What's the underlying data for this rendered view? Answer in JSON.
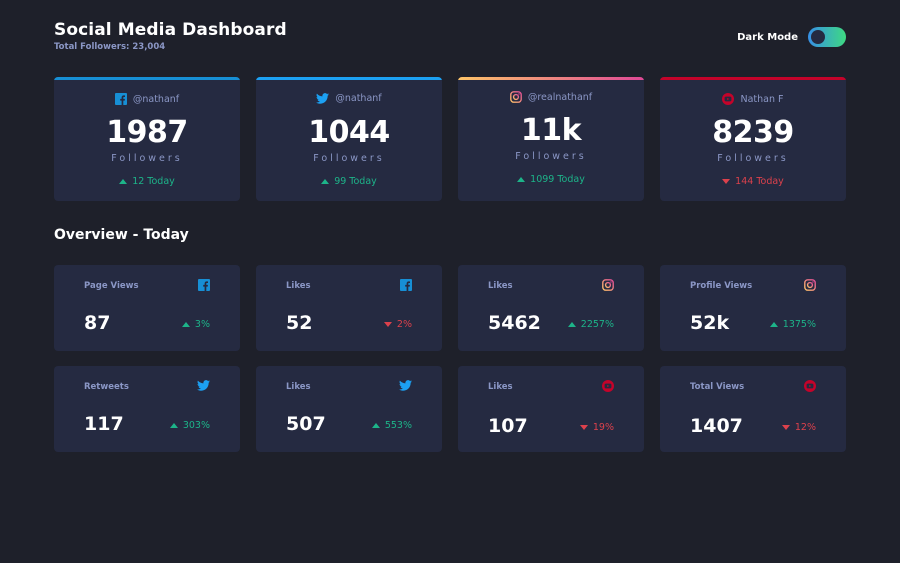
{
  "header": {
    "title": "Social Media Dashboard",
    "subtitle": "Total Followers: 23,004",
    "toggle_label": "Dark Mode"
  },
  "colors": {
    "background": "#1e202a",
    "card": "#252a41",
    "muted_text": "#8b97c6",
    "up": "#1db489",
    "down": "#dc414c",
    "facebook": "#178fd5",
    "twitter": "#1ca0f2",
    "instagram_start": "#fdc468",
    "instagram_end": "#df4996",
    "youtube": "#c4032a"
  },
  "followers": [
    {
      "network": "facebook",
      "icon": "facebook-icon",
      "handle": "@nathanf",
      "count": "1987",
      "label": "Followers",
      "today": "12 Today",
      "trend": "up"
    },
    {
      "network": "twitter",
      "icon": "twitter-icon",
      "handle": "@nathanf",
      "count": "1044",
      "label": "Followers",
      "today": "99 Today",
      "trend": "up"
    },
    {
      "network": "instagram",
      "icon": "instagram-icon",
      "handle": "@realnathanf",
      "count": "11k",
      "label": "Followers",
      "today": "1099 Today",
      "trend": "up"
    },
    {
      "network": "youtube",
      "icon": "youtube-icon",
      "handle": "Nathan F",
      "count": "8239",
      "label": "Followers",
      "today": "144 Today",
      "trend": "down"
    }
  ],
  "overview": {
    "title": "Overview - Today",
    "cards": [
      {
        "label": "Page Views",
        "icon": "facebook-icon",
        "value": "87",
        "change": "3%",
        "trend": "up"
      },
      {
        "label": "Likes",
        "icon": "facebook-icon",
        "value": "52",
        "change": "2%",
        "trend": "down"
      },
      {
        "label": "Likes",
        "icon": "instagram-icon",
        "value": "5462",
        "change": "2257%",
        "trend": "up"
      },
      {
        "label": "Profile Views",
        "icon": "instagram-icon",
        "value": "52k",
        "change": "1375%",
        "trend": "up"
      },
      {
        "label": "Retweets",
        "icon": "twitter-icon",
        "value": "117",
        "change": "303%",
        "trend": "up"
      },
      {
        "label": "Likes",
        "icon": "twitter-icon",
        "value": "507",
        "change": "553%",
        "trend": "up"
      },
      {
        "label": "Likes",
        "icon": "youtube-icon",
        "value": "107",
        "change": "19%",
        "trend": "down"
      },
      {
        "label": "Total Views",
        "icon": "youtube-icon",
        "value": "1407",
        "change": "12%",
        "trend": "down"
      }
    ]
  }
}
